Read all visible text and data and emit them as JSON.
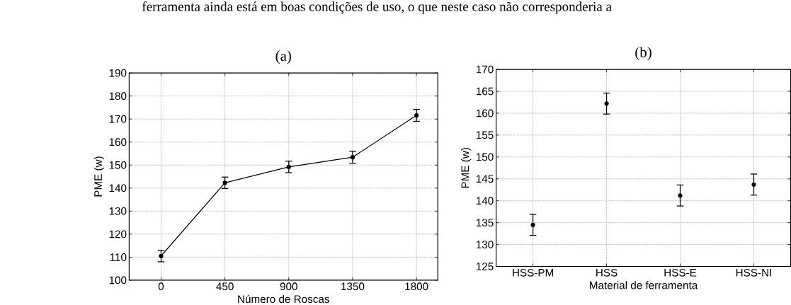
{
  "chart_data": [
    {
      "type": "line",
      "title": "(a)",
      "xlabel": "Número de Roscas",
      "ylabel": "PME (w)",
      "annotations": [
        "ferramenta ainda está em boas condições de uso, o que neste caso não corresponderia a"
      ],
      "x": [
        0,
        450,
        900,
        1350,
        1800
      ],
      "values": [
        110.5,
        142.3,
        149.2,
        153.4,
        171.6
      ],
      "errors": [
        2.5,
        2.5,
        2.5,
        2.6,
        2.6
      ],
      "color": "#000000",
      "marker": "circle",
      "line_style": "solid",
      "grid": true,
      "xlim": [
        -225,
        1950
      ],
      "xticks": [
        0,
        450,
        900,
        1350,
        1800
      ],
      "ylim": [
        100,
        190
      ],
      "yticks": [
        100,
        110,
        120,
        130,
        140,
        150,
        160,
        170,
        180,
        190
      ]
    },
    {
      "type": "scatter",
      "title": "(b)",
      "xlabel": "Material de ferramenta",
      "ylabel": "PME (w)",
      "categories": [
        "HSS-PM",
        "HSS",
        "HSS-E",
        "HSS-NI"
      ],
      "values": [
        134.5,
        162.2,
        141.2,
        143.7
      ],
      "errors": [
        2.4,
        2.4,
        2.4,
        2.4
      ],
      "color": "#000000",
      "marker": "circle",
      "grid": true,
      "ylim": [
        125,
        170
      ],
      "yticks": [
        125,
        130,
        135,
        140,
        145,
        150,
        155,
        160,
        165,
        170
      ]
    }
  ]
}
